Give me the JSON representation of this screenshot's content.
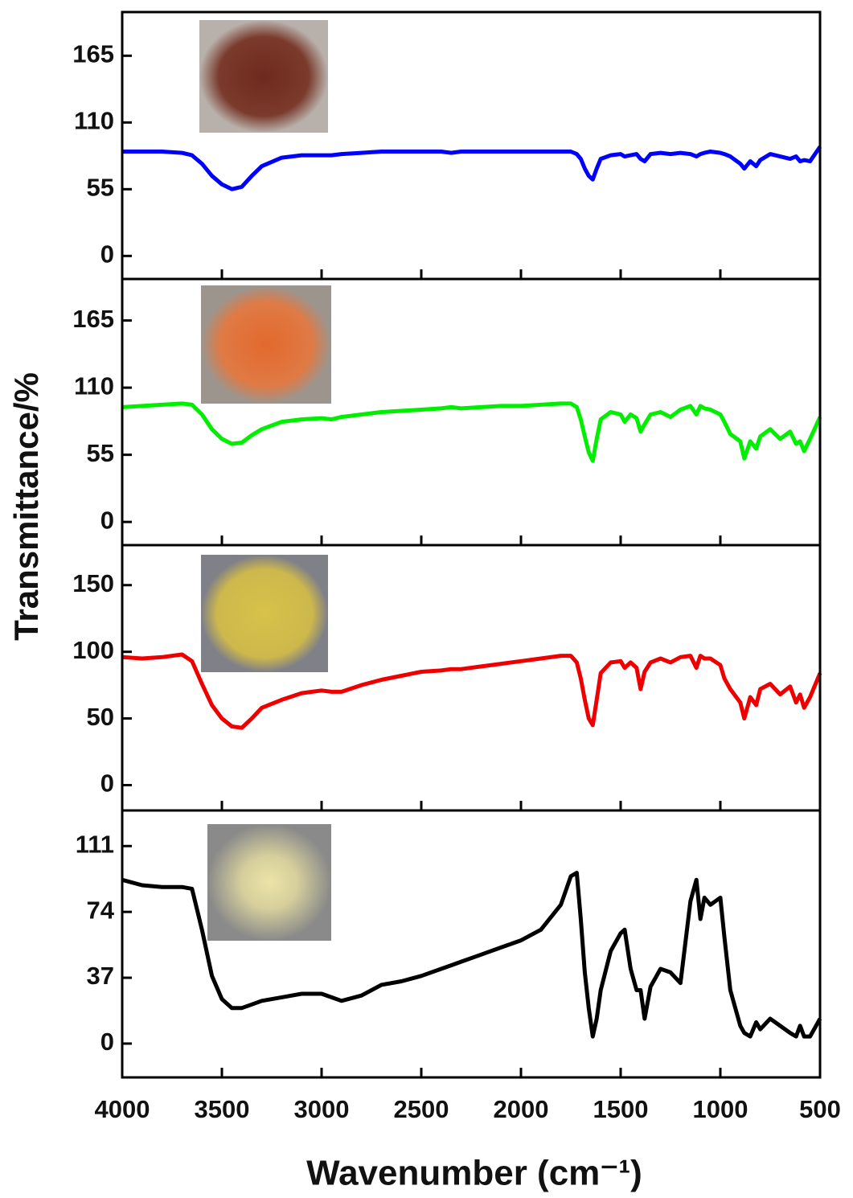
{
  "axis_labels": {
    "x": "Wavenumber (cm⁻¹)",
    "y": "Transmittance/%"
  },
  "chart_data": [
    {
      "type": "line",
      "xlim": [
        4000,
        500
      ],
      "xticks": [
        4000,
        3500,
        3000,
        2500,
        2000,
        1500,
        1000,
        500
      ],
      "ylim": [
        -19,
        201
      ],
      "yticks": [
        0,
        55,
        110,
        165
      ],
      "x": [
        4000,
        3900,
        3800,
        3700,
        3650,
        3600,
        3550,
        3500,
        3450,
        3400,
        3350,
        3300,
        3200,
        3100,
        3000,
        2950,
        2900,
        2800,
        2700,
        2600,
        2500,
        2400,
        2350,
        2300,
        2200,
        2100,
        2000,
        1900,
        1800,
        1750,
        1720,
        1700,
        1680,
        1660,
        1640,
        1620,
        1600,
        1550,
        1500,
        1480,
        1450,
        1420,
        1400,
        1380,
        1350,
        1300,
        1250,
        1200,
        1150,
        1120,
        1100,
        1080,
        1050,
        1000,
        980,
        950,
        900,
        880,
        850,
        820,
        800,
        750,
        700,
        650,
        620,
        600,
        580,
        550,
        500
      ],
      "series": [
        {
          "color": "#0000ff",
          "values": [
            86,
            86,
            86,
            85,
            83,
            76,
            66,
            59,
            55,
            57,
            66,
            74,
            81,
            83,
            83,
            83,
            84,
            85,
            86,
            86,
            86,
            86,
            85,
            86,
            86,
            86,
            86,
            86,
            86,
            86,
            84,
            80,
            72,
            66,
            63,
            72,
            80,
            83,
            84,
            82,
            83,
            84,
            80,
            78,
            84,
            85,
            84,
            85,
            84,
            82,
            84,
            85,
            86,
            85,
            84,
            82,
            76,
            72,
            78,
            74,
            79,
            84,
            82,
            80,
            82,
            78,
            79,
            78,
            90
          ]
        }
      ]
    },
    {
      "type": "line",
      "xlim": [
        4000,
        500
      ],
      "xticks": [
        4000,
        3500,
        3000,
        2500,
        2000,
        1500,
        1000,
        500
      ],
      "ylim": [
        -19,
        199
      ],
      "yticks": [
        0,
        55,
        110,
        165
      ],
      "x": [
        4000,
        3900,
        3800,
        3700,
        3650,
        3600,
        3550,
        3500,
        3450,
        3400,
        3350,
        3300,
        3200,
        3100,
        3000,
        2950,
        2900,
        2800,
        2700,
        2600,
        2500,
        2400,
        2350,
        2300,
        2200,
        2100,
        2000,
        1900,
        1800,
        1750,
        1720,
        1700,
        1680,
        1660,
        1640,
        1620,
        1600,
        1550,
        1500,
        1480,
        1450,
        1420,
        1400,
        1380,
        1350,
        1300,
        1250,
        1200,
        1150,
        1120,
        1100,
        1080,
        1050,
        1000,
        980,
        950,
        900,
        880,
        850,
        820,
        800,
        750,
        700,
        650,
        620,
        600,
        580,
        550,
        500
      ],
      "series": [
        {
          "color": "#00ee00",
          "values": [
            94,
            95,
            96,
            97,
            96,
            88,
            76,
            68,
            64,
            65,
            71,
            76,
            82,
            84,
            85,
            84,
            86,
            88,
            90,
            91,
            92,
            93,
            94,
            93,
            94,
            95,
            95,
            96,
            97,
            97,
            94,
            84,
            70,
            57,
            50,
            68,
            84,
            90,
            88,
            82,
            88,
            85,
            74,
            80,
            88,
            90,
            86,
            92,
            95,
            88,
            95,
            93,
            92,
            88,
            82,
            72,
            66,
            52,
            66,
            60,
            70,
            76,
            68,
            74,
            64,
            66,
            58,
            68,
            86
          ]
        }
      ]
    },
    {
      "type": "line",
      "xlim": [
        4000,
        500
      ],
      "xticks": [
        4000,
        3500,
        3000,
        2500,
        2000,
        1500,
        1000,
        500
      ],
      "ylim": [
        -19,
        180
      ],
      "yticks": [
        0,
        50,
        100,
        150
      ],
      "x": [
        4000,
        3900,
        3800,
        3700,
        3650,
        3600,
        3550,
        3500,
        3450,
        3400,
        3350,
        3300,
        3200,
        3100,
        3000,
        2950,
        2900,
        2800,
        2700,
        2600,
        2500,
        2400,
        2350,
        2300,
        2200,
        2100,
        2000,
        1900,
        1800,
        1750,
        1720,
        1700,
        1680,
        1660,
        1640,
        1620,
        1600,
        1550,
        1500,
        1480,
        1450,
        1420,
        1400,
        1380,
        1350,
        1300,
        1250,
        1200,
        1150,
        1120,
        1100,
        1080,
        1050,
        1000,
        980,
        950,
        900,
        880,
        850,
        820,
        800,
        750,
        700,
        650,
        620,
        600,
        580,
        550,
        500
      ],
      "series": [
        {
          "color": "#ee0000",
          "values": [
            96,
            95,
            96,
            98,
            93,
            76,
            60,
            50,
            44,
            43,
            50,
            58,
            64,
            69,
            71,
            70,
            70,
            75,
            79,
            82,
            85,
            86,
            87,
            87,
            89,
            91,
            93,
            95,
            97,
            97,
            92,
            80,
            64,
            50,
            45,
            64,
            84,
            92,
            93,
            88,
            92,
            88,
            72,
            85,
            92,
            95,
            92,
            96,
            97,
            88,
            97,
            95,
            95,
            90,
            80,
            72,
            62,
            50,
            66,
            60,
            72,
            76,
            68,
            74,
            62,
            68,
            58,
            66,
            84
          ]
        }
      ]
    },
    {
      "type": "line",
      "xlim": [
        4000,
        500
      ],
      "xticks": [
        4000,
        3500,
        3000,
        2500,
        2000,
        1500,
        1000,
        500
      ],
      "ylim": [
        -19,
        131
      ],
      "yticks": [
        0,
        37,
        74,
        111
      ],
      "x": [
        4000,
        3900,
        3800,
        3700,
        3650,
        3600,
        3550,
        3500,
        3450,
        3400,
        3350,
        3300,
        3200,
        3100,
        3000,
        2950,
        2900,
        2800,
        2700,
        2600,
        2500,
        2400,
        2350,
        2300,
        2200,
        2100,
        2000,
        1900,
        1800,
        1750,
        1720,
        1700,
        1680,
        1660,
        1640,
        1620,
        1600,
        1550,
        1500,
        1480,
        1450,
        1420,
        1400,
        1380,
        1350,
        1300,
        1250,
        1200,
        1150,
        1120,
        1100,
        1080,
        1050,
        1000,
        980,
        950,
        900,
        880,
        850,
        820,
        800,
        750,
        700,
        650,
        620,
        600,
        580,
        550,
        500
      ],
      "series": [
        {
          "color": "#000000",
          "values": [
            92,
            89,
            88,
            88,
            87,
            64,
            38,
            25,
            20,
            20,
            22,
            24,
            26,
            28,
            28,
            26,
            24,
            27,
            33,
            35,
            38,
            42,
            44,
            46,
            50,
            54,
            58,
            64,
            78,
            94,
            96,
            70,
            40,
            20,
            4,
            14,
            30,
            52,
            62,
            64,
            42,
            30,
            30,
            14,
            32,
            42,
            40,
            34,
            80,
            92,
            70,
            82,
            78,
            82,
            60,
            30,
            10,
            6,
            4,
            12,
            8,
            14,
            10,
            6,
            4,
            10,
            4,
            4,
            14
          ]
        }
      ]
    }
  ]
}
